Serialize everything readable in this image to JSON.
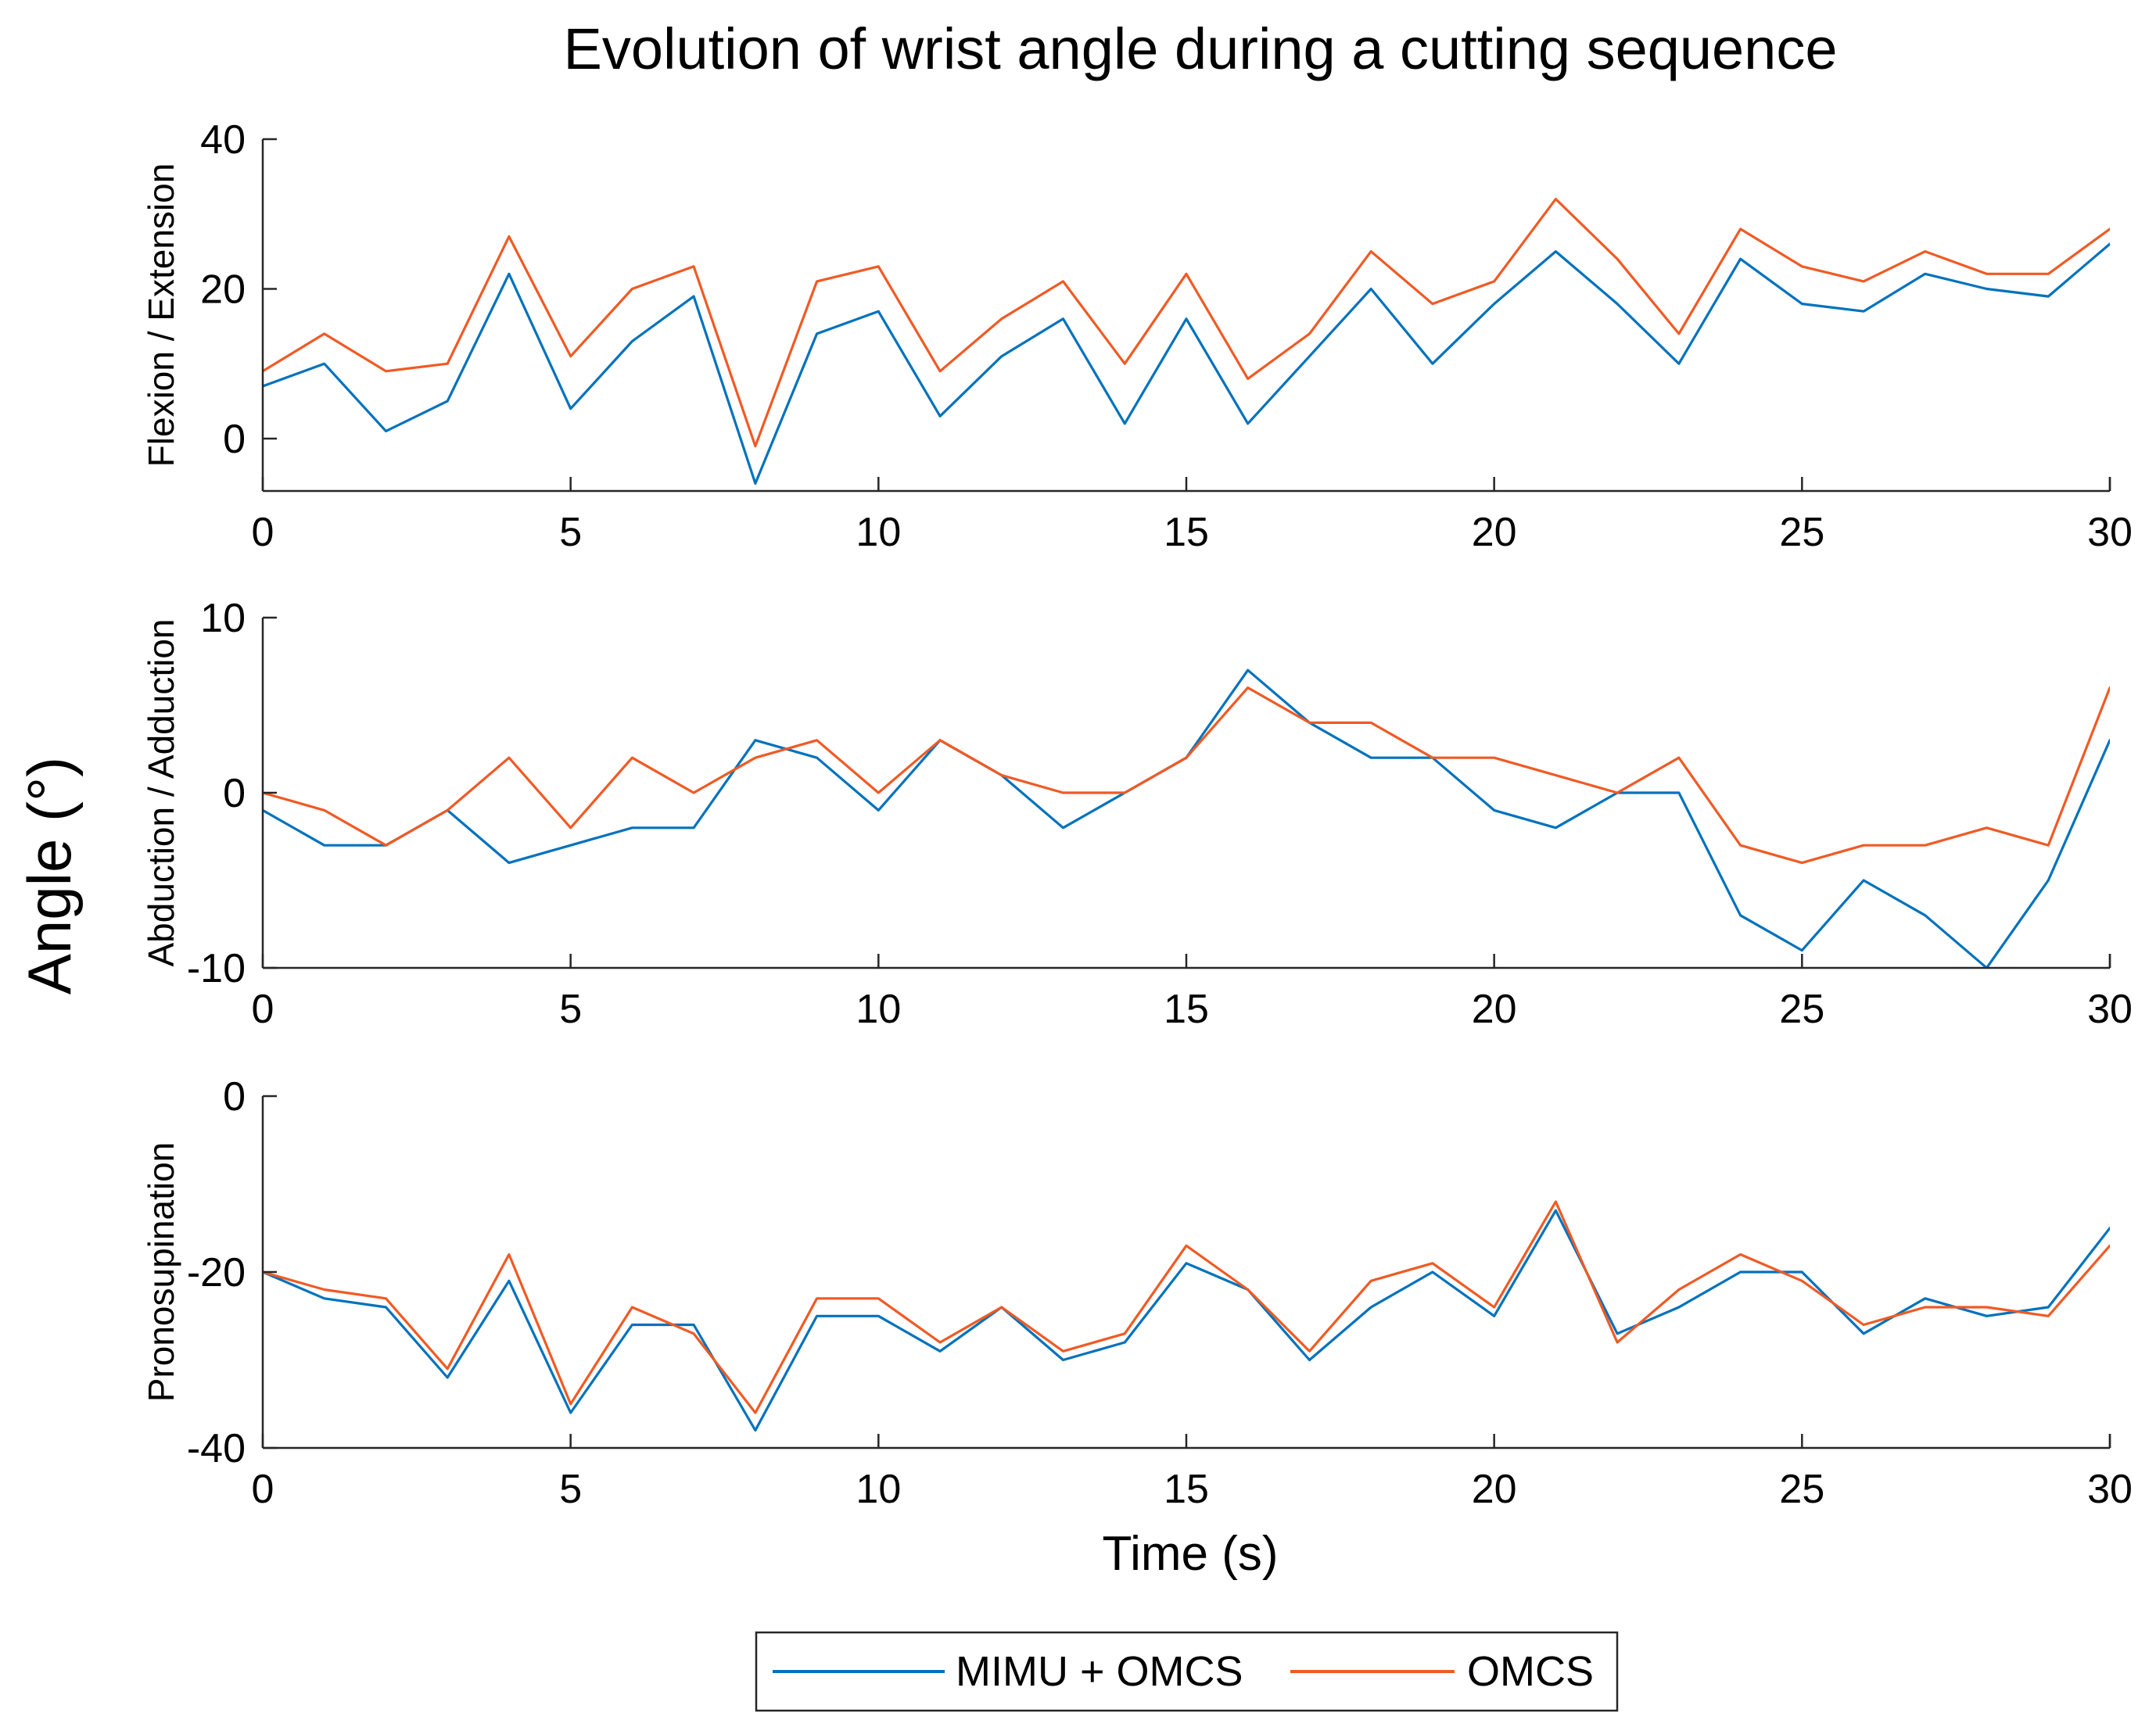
{
  "figure": {
    "title": "Evolution of wrist angle during a cutting sequence",
    "shared_ylabel": "Angle (°)",
    "shared_xlabel": "Time (s)"
  },
  "legend": {
    "placement": "bottom-center",
    "entries": [
      {
        "label": "MIMU + OMCS",
        "color": "#0072BD"
      },
      {
        "label": "OMCS",
        "color": "#F05A24"
      }
    ]
  },
  "chart_data": [
    {
      "type": "line",
      "ylabel": "Flexion / Extension",
      "xlabel": "",
      "xlim": [
        0,
        30
      ],
      "ylim": [
        -7,
        40
      ],
      "xticks": [
        "0",
        "5",
        "10",
        "15",
        "20",
        "25",
        "30"
      ],
      "yticks": [
        "0",
        "20",
        "40"
      ],
      "x": [
        0,
        1,
        2,
        3,
        4,
        5,
        6,
        7,
        8,
        9,
        10,
        11,
        12,
        13,
        14,
        15,
        16,
        17,
        18,
        19,
        20,
        21,
        22,
        23,
        24,
        25,
        26,
        27,
        28,
        29,
        30
      ],
      "series": [
        {
          "name": "MIMU + OMCS",
          "color": "#0072BD",
          "values": [
            7,
            10,
            1,
            5,
            22,
            4,
            13,
            19,
            -6,
            14,
            17,
            3,
            11,
            16,
            2,
            16,
            2,
            11,
            20,
            10,
            18,
            25,
            18,
            10,
            24,
            18,
            17,
            22,
            20,
            19,
            26
          ]
        },
        {
          "name": "OMCS",
          "color": "#F05A24",
          "values": [
            9,
            14,
            9,
            10,
            27,
            11,
            20,
            23,
            -1,
            21,
            23,
            9,
            16,
            21,
            10,
            22,
            8,
            14,
            25,
            18,
            21,
            32,
            24,
            14,
            28,
            23,
            21,
            25,
            22,
            22,
            28
          ]
        }
      ]
    },
    {
      "type": "line",
      "ylabel": "Abduction / Adduction",
      "xlabel": "",
      "xlim": [
        0,
        30
      ],
      "ylim": [
        -10,
        10
      ],
      "xticks": [
        "0",
        "5",
        "10",
        "15",
        "20",
        "25",
        "30"
      ],
      "yticks": [
        "-10",
        "0",
        "10"
      ],
      "x": [
        0,
        1,
        2,
        3,
        4,
        5,
        6,
        7,
        8,
        9,
        10,
        11,
        12,
        13,
        14,
        15,
        16,
        17,
        18,
        19,
        20,
        21,
        22,
        23,
        24,
        25,
        26,
        27,
        28,
        29,
        30
      ],
      "series": [
        {
          "name": "MIMU + OMCS",
          "color": "#0072BD",
          "values": [
            -1,
            -3,
            -3,
            -1,
            -4,
            -3,
            -2,
            -2,
            3,
            2,
            -1,
            3,
            1,
            -2,
            0,
            2,
            7,
            4,
            2,
            2,
            -1,
            -2,
            0,
            0,
            -7,
            -9,
            -5,
            -7,
            -10,
            -5,
            3
          ]
        },
        {
          "name": "OMCS",
          "color": "#F05A24",
          "values": [
            0,
            -1,
            -3,
            -1,
            2,
            -2,
            2,
            0,
            2,
            3,
            0,
            3,
            1,
            0,
            0,
            2,
            6,
            4,
            4,
            2,
            2,
            1,
            0,
            2,
            -3,
            -4,
            -3,
            -3,
            -2,
            -3,
            6
          ]
        }
      ]
    },
    {
      "type": "line",
      "ylabel": "Pronosupination",
      "xlabel": "Time (s)",
      "xlim": [
        0,
        30
      ],
      "ylim": [
        -40,
        0
      ],
      "xticks": [
        "0",
        "5",
        "10",
        "15",
        "20",
        "25",
        "30"
      ],
      "yticks": [
        "-40",
        "-20",
        "0"
      ],
      "x": [
        0,
        1,
        2,
        3,
        4,
        5,
        6,
        7,
        8,
        9,
        10,
        11,
        12,
        13,
        14,
        15,
        16,
        17,
        18,
        19,
        20,
        21,
        22,
        23,
        24,
        25,
        26,
        27,
        28,
        29,
        30
      ],
      "series": [
        {
          "name": "MIMU + OMCS",
          "color": "#0072BD",
          "values": [
            -20,
            -23,
            -24,
            -32,
            -21,
            -36,
            -26,
            -26,
            -38,
            -25,
            -25,
            -29,
            -24,
            -30,
            -28,
            -19,
            -22,
            -30,
            -24,
            -20,
            -25,
            -13,
            -27,
            -24,
            -20,
            -20,
            -27,
            -23,
            -25,
            -24,
            -15
          ]
        },
        {
          "name": "OMCS",
          "color": "#F05A24",
          "values": [
            -20,
            -22,
            -23,
            -31,
            -18,
            -35,
            -24,
            -27,
            -36,
            -23,
            -23,
            -28,
            -24,
            -29,
            -27,
            -17,
            -22,
            -29,
            -21,
            -19,
            -24,
            -12,
            -28,
            -22,
            -18,
            -21,
            -26,
            -24,
            -24,
            -25,
            -17
          ]
        }
      ]
    }
  ]
}
